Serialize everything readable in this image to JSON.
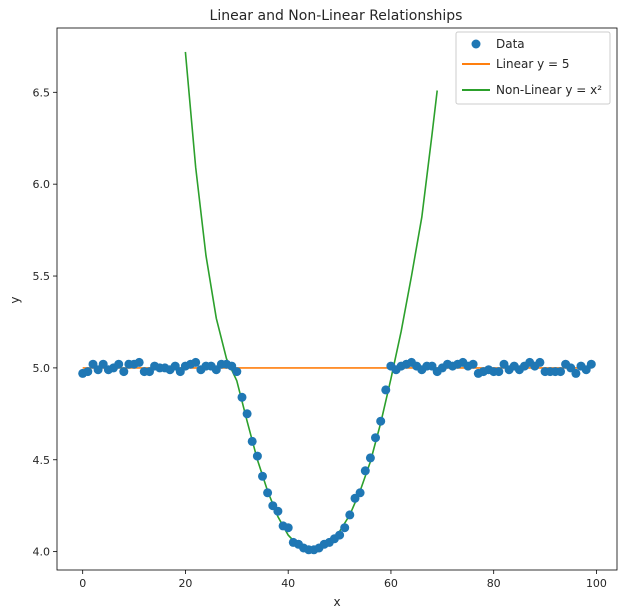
{
  "chart_data": {
    "type": "scatter",
    "title": "Linear and Non-Linear Relationships",
    "xlabel": "x",
    "ylabel": "y",
    "xlim": [
      -5,
      104
    ],
    "ylim": [
      3.9,
      6.85
    ],
    "xticks": [
      0,
      20,
      40,
      60,
      80,
      100
    ],
    "yticks": [
      4.0,
      4.5,
      5.0,
      5.5,
      6.0,
      6.5
    ],
    "xtick_labels": [
      "0",
      "20",
      "40",
      "60",
      "80",
      "100"
    ],
    "ytick_labels": [
      "4.0",
      "4.5",
      "5.0",
      "5.5",
      "6.0",
      "6.5"
    ],
    "grid": false,
    "legend_position": "top-right",
    "legend": {
      "data_label": "Data",
      "linear_label": "Linear y = 5",
      "nonlinear_label": "Non-Linear y = x²"
    },
    "colors": {
      "data": "#1f77b4",
      "linear": "#ff7f0e",
      "nonlinear": "#2ca02c"
    },
    "scatter": {
      "name": "Data",
      "x": [
        0,
        1,
        2,
        3,
        4,
        5,
        6,
        7,
        8,
        9,
        10,
        11,
        12,
        13,
        14,
        15,
        16,
        17,
        18,
        19,
        20,
        21,
        22,
        23,
        24,
        25,
        26,
        27,
        28,
        29,
        30,
        31,
        32,
        33,
        34,
        35,
        36,
        37,
        38,
        39,
        40,
        41,
        42,
        43,
        44,
        45,
        46,
        47,
        48,
        49,
        50,
        51,
        52,
        53,
        54,
        55,
        56,
        57,
        58,
        59,
        60,
        61,
        62,
        63,
        64,
        65,
        66,
        67,
        68,
        69,
        70,
        71,
        72,
        73,
        74,
        75,
        76,
        77,
        78,
        79,
        80,
        81,
        82,
        83,
        84,
        85,
        86,
        87,
        88,
        89,
        90,
        91,
        92,
        93,
        94,
        95,
        96,
        97,
        98,
        99
      ],
      "y": [
        4.97,
        4.98,
        5.02,
        4.99,
        5.02,
        4.99,
        5.0,
        5.02,
        4.98,
        5.02,
        5.02,
        5.03,
        4.98,
        4.98,
        5.01,
        5.0,
        5.0,
        4.99,
        5.01,
        4.98,
        5.01,
        5.02,
        5.03,
        4.99,
        5.01,
        5.01,
        4.99,
        5.02,
        5.02,
        5.01,
        4.98,
        4.84,
        4.75,
        4.6,
        4.52,
        4.41,
        4.32,
        4.25,
        4.22,
        4.14,
        4.13,
        4.05,
        4.04,
        4.02,
        4.01,
        4.01,
        4.02,
        4.04,
        4.05,
        4.07,
        4.09,
        4.13,
        4.2,
        4.29,
        4.32,
        4.44,
        4.51,
        4.62,
        4.71,
        4.88,
        5.01,
        4.99,
        5.01,
        5.02,
        5.03,
        5.01,
        4.99,
        5.01,
        5.01,
        4.98,
        5.0,
        5.02,
        5.01,
        5.02,
        5.03,
        5.01,
        5.02,
        4.97,
        4.98,
        4.99,
        4.98,
        4.98,
        5.02,
        4.99,
        5.01,
        4.99,
        5.01,
        5.03,
        5.01,
        5.03,
        4.98,
        4.98,
        4.98,
        4.98,
        5.02,
        5.0,
        4.97,
        5.01,
        4.99,
        5.02
      ]
    },
    "lines": [
      {
        "name": "Linear y = 5",
        "x": [
          0,
          99
        ],
        "y": [
          5.0,
          5.0
        ]
      },
      {
        "name": "Non-Linear y = x²",
        "x": [
          20,
          22,
          24,
          26,
          28,
          30,
          32,
          34,
          36,
          38,
          40,
          42,
          44,
          45,
          46,
          48,
          50,
          52,
          54,
          56,
          58,
          60,
          62,
          64,
          66,
          68,
          69
        ],
        "y": [
          6.72,
          6.09,
          5.61,
          5.27,
          5.05,
          4.93,
          4.71,
          4.5,
          4.33,
          4.19,
          4.09,
          4.03,
          4.01,
          4.01,
          4.02,
          4.05,
          4.11,
          4.2,
          4.33,
          4.49,
          4.7,
          4.94,
          5.2,
          5.5,
          5.82,
          6.27,
          6.51
        ]
      }
    ]
  }
}
